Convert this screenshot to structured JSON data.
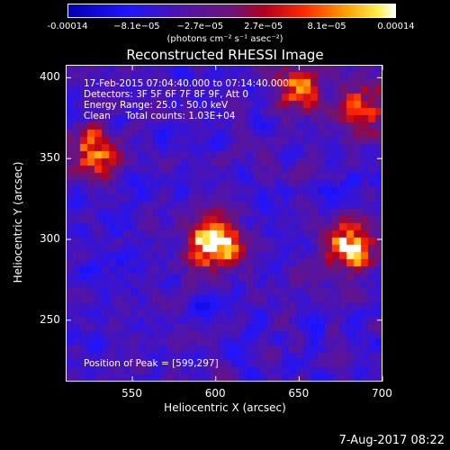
{
  "chart_data": {
    "type": "heatmap",
    "title": "Reconstructed RHESSI Image",
    "xlabel": "Heliocentric X (arcsec)",
    "ylabel": "Heliocentric Y (arcsec)",
    "xlim": [
      510,
      700
    ],
    "ylim": [
      212,
      408
    ],
    "x_ticks": [
      "550",
      "600",
      "650",
      "700"
    ],
    "y_ticks": [
      "250",
      "300",
      "350",
      "400"
    ],
    "x_tick_values": [
      550,
      600,
      650,
      700
    ],
    "y_tick_values": [
      250,
      300,
      350,
      400
    ],
    "colorbar": {
      "tick_labels": [
        "-0.00014",
        "−8.1e−05",
        "−2.7e−05",
        "2.7e−05",
        "8.1e−05",
        "0.00014"
      ],
      "tick_values": [
        -0.00014,
        -8.1e-05,
        -2.7e-05,
        2.7e-05,
        8.1e-05,
        0.00014
      ],
      "range": [
        -0.00014,
        0.00014
      ],
      "units": "(photons cm⁻² s⁻¹ asec⁻²)"
    },
    "sources": [
      {
        "x": 599,
        "y": 297,
        "relative_intensity": 1.0
      },
      {
        "x": 680,
        "y": 295,
        "relative_intensity": 0.95
      },
      {
        "x": 528,
        "y": 355,
        "relative_intensity": 0.7
      },
      {
        "x": 650,
        "y": 395,
        "relative_intensity": 0.6
      },
      {
        "x": 690,
        "y": 380,
        "relative_intensity": 0.6
      }
    ],
    "info_lines": [
      "17-Feb-2015 07:04:40.000 to 07:14:40.000",
      "Detectors: 3F 5F 6F 7F 8F 9F, Att 0",
      "Energy Range: 25.0 - 50.0 keV",
      "Clean     Total counts: 1.03E+04"
    ],
    "peak_label": "Position of Peak = [599,297]"
  },
  "footer": {
    "date": "7-Aug-2017 08:22"
  }
}
